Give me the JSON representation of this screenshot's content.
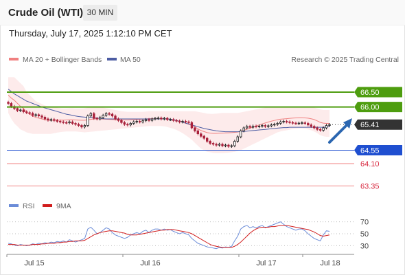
{
  "header": {
    "title": "Crude Oil (WTI)",
    "interval": "30 MIN"
  },
  "timestamp": "Thursday, July 17, 2025 1:12:10 PM CET",
  "legend": {
    "bollinger": "MA 20 + Bollinger Bands",
    "ma50": "MA 50",
    "credit": "Research © 2025 Trading Central",
    "rsi": "RSI",
    "rsi_ma": "9MA"
  },
  "colors": {
    "resistance": "#4e9d0f",
    "support": "#1f4fd0",
    "secondary_support": "#f08080",
    "current_price": "#333333",
    "bollinger": "#f08080",
    "ma50": "#4c5ca3",
    "rsi": "#6b8cd8",
    "rsi_ma": "#d11d1d",
    "candle_up": "#1a1a1a",
    "candle_down": "#a8203a",
    "arrow": "#2b66b0"
  },
  "chart_data": [
    {
      "type": "candlestick",
      "x_ticks": [
        "Jul 15",
        "Jul 16",
        "Jul 17",
        "Jul 18"
      ],
      "ylim": [
        62.9,
        67.4
      ],
      "levels": [
        {
          "label": "66.50",
          "value": 66.5,
          "kind": "resistance"
        },
        {
          "label": "66.00",
          "value": 66.0,
          "kind": "resistance"
        },
        {
          "label": "65.41",
          "value": 65.41,
          "kind": "current"
        },
        {
          "label": "64.55",
          "value": 64.55,
          "kind": "support"
        },
        {
          "label": "64.10",
          "value": 64.1,
          "kind": "secondary_support"
        },
        {
          "label": "63.35",
          "value": 63.35,
          "kind": "secondary_support"
        }
      ],
      "close": [
        66.12,
        66.02,
        65.95,
        65.88,
        65.9,
        65.84,
        65.81,
        65.79,
        65.72,
        65.74,
        65.7,
        65.66,
        65.6,
        65.56,
        65.58,
        65.55,
        65.52,
        65.5,
        65.48,
        65.47,
        65.5,
        65.45,
        65.42,
        65.38,
        65.33,
        65.38,
        65.7,
        65.78,
        65.62,
        65.6,
        65.65,
        65.72,
        65.78,
        65.76,
        65.7,
        65.6,
        65.55,
        65.48,
        65.42,
        65.4,
        65.45,
        65.5,
        65.52,
        65.5,
        65.54,
        65.58,
        65.55,
        65.6,
        65.62,
        65.63,
        65.6,
        65.62,
        65.58,
        65.58,
        65.55,
        65.53,
        65.5,
        65.52,
        65.5,
        65.48,
        65.3,
        65.2,
        65.1,
        65.02,
        64.95,
        64.85,
        64.78,
        64.75,
        64.72,
        64.75,
        64.7,
        64.72,
        64.68,
        64.7,
        64.85,
        65.0,
        65.2,
        65.3,
        65.35,
        65.32,
        65.36,
        65.34,
        65.36,
        65.38,
        65.35,
        65.37,
        65.4,
        65.42,
        65.45,
        65.5,
        65.52,
        65.5,
        65.48,
        65.46,
        65.45,
        65.46,
        65.47,
        65.45,
        65.4,
        65.35,
        65.3,
        65.25,
        65.22,
        65.3,
        65.38,
        65.41
      ],
      "ma20_upper": [
        67.0,
        67.0,
        67.0,
        66.9,
        66.8,
        66.7,
        66.5,
        66.4,
        66.3,
        66.2,
        66.15,
        66.1,
        66.05,
        66.02,
        66.0,
        66.0,
        65.98,
        65.96,
        65.95,
        65.95,
        65.96,
        65.96,
        65.95,
        65.95,
        65.95,
        65.96,
        65.98,
        66.0,
        66.02,
        66.02,
        66.0,
        65.98,
        65.96,
        65.94,
        65.92,
        65.9,
        65.88,
        65.86,
        65.85,
        65.84,
        65.84,
        65.84,
        65.84,
        65.84,
        65.84,
        65.85,
        65.86,
        65.86,
        65.86,
        65.86,
        65.86,
        65.86,
        65.86,
        65.86,
        65.86,
        65.86,
        65.86,
        65.86,
        65.86,
        65.86,
        65.86,
        65.86,
        65.84,
        65.82,
        65.8,
        65.78,
        65.77,
        65.77,
        65.78,
        65.79,
        65.8,
        65.8,
        65.8,
        65.8,
        65.8,
        65.8,
        65.82,
        65.84,
        65.86,
        65.88,
        65.9,
        65.92,
        65.94,
        65.96,
        65.98,
        65.99,
        66.0,
        66.0,
        66.0,
        66.0,
        66.0,
        66.0,
        66.0,
        66.0,
        66.0,
        66.0,
        66.0,
        66.0,
        66.0,
        65.99,
        65.98,
        65.95,
        65.92,
        65.9,
        65.9,
        65.9
      ],
      "ma20_lower": [
        65.8,
        65.6,
        65.45,
        65.35,
        65.25,
        65.2,
        65.15,
        65.12,
        65.1,
        65.1,
        65.1,
        65.1,
        65.1,
        65.1,
        65.1,
        65.12,
        65.14,
        65.16,
        65.17,
        65.18,
        65.18,
        65.18,
        65.18,
        65.17,
        65.16,
        65.15,
        65.16,
        65.17,
        65.18,
        65.19,
        65.2,
        65.21,
        65.22,
        65.23,
        65.24,
        65.25,
        65.26,
        65.27,
        65.28,
        65.29,
        65.3,
        65.31,
        65.32,
        65.33,
        65.34,
        65.35,
        65.36,
        65.36,
        65.36,
        65.36,
        65.36,
        65.35,
        65.33,
        65.3,
        65.27,
        65.23,
        65.18,
        65.12,
        65.05,
        64.98,
        64.9,
        64.8,
        64.7,
        64.6,
        64.55,
        64.5,
        64.48,
        64.46,
        64.45,
        64.45,
        64.45,
        64.46,
        64.47,
        64.48,
        64.5,
        64.52,
        64.55,
        64.6,
        64.65,
        64.7,
        64.75,
        64.8,
        64.85,
        64.9,
        64.95,
        65.0,
        65.05,
        65.1,
        65.15,
        65.18,
        65.2,
        65.22,
        65.24,
        65.26,
        65.27,
        65.28,
        65.28,
        65.27,
        65.25,
        65.22,
        65.18,
        65.12,
        65.05,
        65.02,
        65.0,
        65.0
      ],
      "ma50": [
        66.6,
        66.52,
        66.44,
        66.38,
        66.32,
        66.26,
        66.2,
        66.16,
        66.12,
        66.08,
        66.04,
        66.0,
        65.97,
        65.94,
        65.91,
        65.88,
        65.85,
        65.82,
        65.79,
        65.76,
        65.74,
        65.72,
        65.7,
        65.68,
        65.67,
        65.66,
        65.65,
        65.65,
        65.64,
        65.63,
        65.62,
        65.61,
        65.6,
        65.6,
        65.6,
        65.6,
        65.6,
        65.6,
        65.6,
        65.6,
        65.6,
        65.6,
        65.6,
        65.6,
        65.6,
        65.6,
        65.6,
        65.6,
        65.6,
        65.6,
        65.6,
        65.6,
        65.6,
        65.59,
        65.57,
        65.55,
        65.52,
        65.49,
        65.46,
        65.43,
        65.4,
        65.37,
        65.34,
        65.31,
        65.28,
        65.26,
        65.24,
        65.22,
        65.2,
        65.19,
        65.18,
        65.17,
        65.17,
        65.17,
        65.17,
        65.17,
        65.18,
        65.18,
        65.19,
        65.2,
        65.21,
        65.22,
        65.23,
        65.24,
        65.25,
        65.26,
        65.27,
        65.28,
        65.29,
        65.3,
        65.31,
        65.31,
        65.32,
        65.32,
        65.32,
        65.32,
        65.32,
        65.32,
        65.32,
        65.32,
        65.32,
        65.32,
        65.32,
        65.32,
        65.33,
        65.35
      ]
    },
    {
      "type": "line",
      "ylim": [
        20,
        80
      ],
      "y_ticks": [
        30,
        50,
        70
      ],
      "series": [
        {
          "name": "RSI",
          "values": [
            34,
            33,
            31,
            30,
            32,
            31,
            30,
            31,
            33,
            32,
            34,
            33,
            35,
            34,
            36,
            35,
            37,
            36,
            38,
            36,
            40,
            38,
            36,
            38,
            40,
            42,
            58,
            61,
            56,
            50,
            52,
            56,
            60,
            58,
            52,
            48,
            46,
            44,
            42,
            44,
            48,
            50,
            52,
            50,
            54,
            56,
            52,
            56,
            58,
            58,
            56,
            58,
            56,
            57,
            54,
            52,
            50,
            52,
            50,
            48,
            42,
            38,
            34,
            32,
            30,
            28,
            27,
            26,
            25,
            27,
            26,
            28,
            27,
            29,
            38,
            46,
            58,
            62,
            64,
            60,
            62,
            60,
            62,
            64,
            60,
            62,
            64,
            66,
            68,
            70,
            66,
            62,
            60,
            58,
            56,
            58,
            58,
            55,
            50,
            46,
            42,
            40,
            38,
            48,
            55,
            54
          ]
        },
        {
          "name": "9MA",
          "values": [
            32,
            32,
            32,
            31,
            31,
            31,
            31,
            31,
            32,
            32,
            32,
            33,
            33,
            34,
            34,
            34,
            35,
            35,
            36,
            36,
            37,
            37,
            38,
            38,
            38,
            39,
            42,
            45,
            48,
            50,
            52,
            53,
            54,
            55,
            55,
            54,
            53,
            52,
            51,
            49,
            48,
            48,
            48,
            49,
            50,
            51,
            52,
            53,
            54,
            55,
            56,
            56,
            57,
            57,
            57,
            56,
            55,
            54,
            53,
            52,
            50,
            47,
            44,
            41,
            38,
            35,
            32,
            30,
            29,
            28,
            27,
            27,
            27,
            27,
            29,
            32,
            36,
            41,
            46,
            51,
            55,
            58,
            60,
            61,
            61,
            61,
            62,
            62,
            63,
            64,
            64,
            64,
            63,
            62,
            61,
            60,
            59,
            58,
            57,
            55,
            53,
            50,
            47,
            46,
            47,
            48
          ]
        }
      ]
    }
  ]
}
